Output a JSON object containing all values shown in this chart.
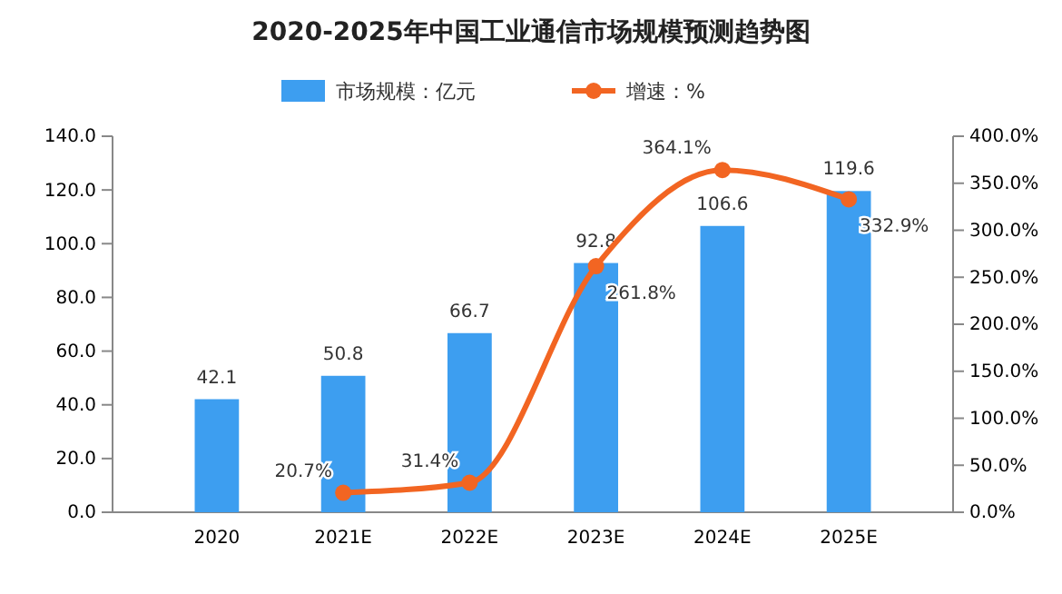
{
  "chart_data": {
    "type": "bar",
    "title": "2020-2025年中国工业通信市场规模预测趋势图",
    "categories": [
      "2020",
      "2021E",
      "2022E",
      "2023E",
      "2024E",
      "2025E"
    ],
    "series": [
      {
        "name": "市场规模：亿元",
        "color": "#3d9ef0",
        "values": [
          42.1,
          50.8,
          66.7,
          92.8,
          106.6,
          119.6
        ]
      },
      {
        "name": "增速：%",
        "type": "line",
        "axis": "y2",
        "color": "#f26522",
        "marker": "circle",
        "values": [
          null,
          20.7,
          31.4,
          261.8,
          364.1,
          332.9
        ],
        "value_labels": [
          null,
          "20.7%",
          "31.4%",
          "261.8%",
          "364.1%",
          "332.9%"
        ]
      }
    ],
    "ylim": [
      0,
      140
    ],
    "yticks": [
      {
        "value": 0,
        "label": "0.0"
      },
      {
        "value": 20,
        "label": "20.0"
      },
      {
        "value": 40,
        "label": "40.0"
      },
      {
        "value": 60,
        "label": "60.0"
      },
      {
        "value": 80,
        "label": "80.0"
      },
      {
        "value": 100,
        "label": "100.0"
      },
      {
        "value": 120,
        "label": "120.0"
      },
      {
        "value": 140,
        "label": "140.0"
      }
    ],
    "y2lim": [
      0,
      400
    ],
    "y2ticks": [
      {
        "value": 0,
        "label": "0.0%"
      },
      {
        "value": 50,
        "label": "50.0%"
      },
      {
        "value": 100,
        "label": "100.0%"
      },
      {
        "value": 150,
        "label": "150.0%"
      },
      {
        "value": 200,
        "label": "200.0%"
      },
      {
        "value": 250,
        "label": "250.0%"
      },
      {
        "value": 300,
        "label": "300.0%"
      },
      {
        "value": 350,
        "label": "350.0%"
      },
      {
        "value": 400,
        "label": "400.0%"
      }
    ],
    "data_labels": true,
    "legend": "top",
    "grid": false
  }
}
